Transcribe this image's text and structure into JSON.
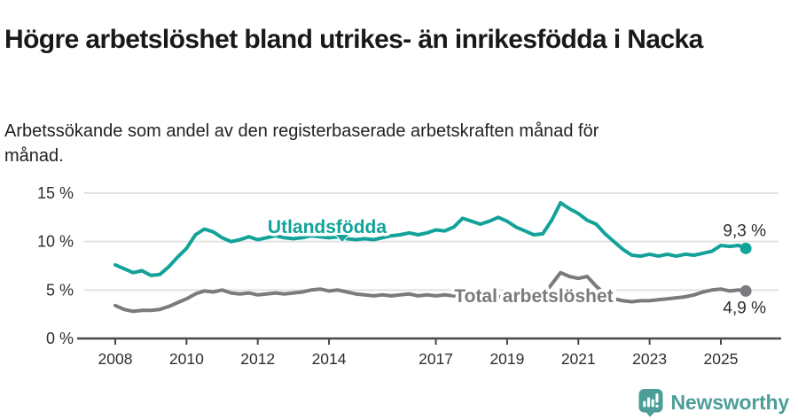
{
  "header": {
    "title": "Högre arbetslöshet bland utrikes- än inrikesfödda i Nacka",
    "subtitle": "Arbetssökande som andel av den registerbaserade arbetskraften månad för månad."
  },
  "footer": {
    "brand": "Newsworthy",
    "logo_icon": "speech-bubble-bar-chart-icon"
  },
  "colors": {
    "series_utlandsfodda": "#13A29A",
    "series_total": "#7A7A7F",
    "label_total": "#6F6F74",
    "grid": "#E2E2E2",
    "axis": "#48484C",
    "tick_text": "#2E2E2E",
    "value_text": "#2B2B2B",
    "brand_teal": "#4D9E99"
  },
  "chart_data": {
    "type": "line",
    "x_unit": "year_decimal",
    "grid": "horizontal",
    "legend_position": "inline-labels",
    "x_axis": {
      "ticks": [
        2008,
        2010,
        2012,
        2014,
        2017,
        2019,
        2021,
        2023,
        2025
      ]
    },
    "y_axis": {
      "range": [
        0,
        15
      ],
      "unit": "%",
      "ticks": [
        {
          "value": 0,
          "label": "0 %"
        },
        {
          "value": 5,
          "label": "5 %"
        },
        {
          "value": 10,
          "label": "10 %"
        },
        {
          "value": 15,
          "label": "15 %"
        }
      ]
    },
    "x": [
      2008,
      2008.25,
      2008.5,
      2008.75,
      2009,
      2009.25,
      2009.5,
      2009.75,
      2010,
      2010.25,
      2010.5,
      2010.75,
      2011,
      2011.25,
      2011.5,
      2011.75,
      2012,
      2012.25,
      2012.5,
      2012.75,
      2013,
      2013.25,
      2013.5,
      2013.75,
      2014,
      2014.25,
      2014.5,
      2014.75,
      2015,
      2015.25,
      2015.5,
      2015.75,
      2016,
      2016.25,
      2016.5,
      2016.75,
      2017,
      2017.25,
      2017.5,
      2017.75,
      2018,
      2018.25,
      2018.5,
      2018.75,
      2019,
      2019.25,
      2019.5,
      2019.75,
      2020,
      2020.25,
      2020.5,
      2020.75,
      2021,
      2021.25,
      2021.5,
      2021.75,
      2022,
      2022.25,
      2022.5,
      2022.75,
      2023,
      2023.25,
      2023.5,
      2023.75,
      2024,
      2024.25,
      2024.5,
      2024.75,
      2025,
      2025.25,
      2025.5,
      2025.7
    ],
    "series": [
      {
        "name": "Utlandsfödda",
        "color": "#13A29A",
        "end_label": "9,3 %",
        "end_label_pos": "above",
        "inline_label": {
          "x": 369,
          "y": 263,
          "pointer": true
        },
        "values": [
          7.6,
          7.2,
          6.8,
          7.0,
          6.5,
          6.6,
          7.4,
          8.4,
          9.3,
          10.7,
          11.3,
          11.0,
          10.4,
          10.0,
          10.2,
          10.5,
          10.2,
          10.4,
          10.6,
          10.4,
          10.3,
          10.4,
          10.6,
          10.5,
          10.4,
          10.5,
          10.3,
          10.2,
          10.3,
          10.2,
          10.4,
          10.6,
          10.7,
          10.9,
          10.7,
          10.9,
          11.2,
          11.1,
          11.5,
          12.4,
          12.1,
          11.8,
          12.1,
          12.5,
          12.1,
          11.5,
          11.1,
          10.7,
          10.8,
          12.2,
          14.0,
          13.4,
          12.9,
          12.2,
          11.8,
          10.8,
          10.0,
          9.2,
          8.6,
          8.5,
          8.7,
          8.5,
          8.7,
          8.5,
          8.7,
          8.6,
          8.8,
          9.0,
          9.6,
          9.5,
          9.6,
          9.3
        ]
      },
      {
        "name": "Total arbetslöshet",
        "color": "#7A7A7F",
        "end_label": "4,9 %",
        "end_label_pos": "below",
        "inline_label": {
          "x": 602,
          "y": 341,
          "pointer": false
        },
        "values": [
          3.4,
          3.0,
          2.8,
          2.9,
          2.9,
          3.0,
          3.3,
          3.7,
          4.1,
          4.6,
          4.9,
          4.8,
          5.0,
          4.7,
          4.6,
          4.7,
          4.5,
          4.6,
          4.7,
          4.6,
          4.7,
          4.8,
          5.0,
          5.1,
          4.9,
          5.0,
          4.8,
          4.6,
          4.5,
          4.4,
          4.5,
          4.4,
          4.5,
          4.6,
          4.4,
          4.5,
          4.4,
          4.5,
          4.4,
          4.5,
          4.4,
          4.3,
          4.4,
          4.3,
          4.4,
          4.3,
          4.4,
          4.3,
          4.4,
          5.6,
          6.8,
          6.4,
          6.2,
          6.4,
          5.4,
          4.6,
          4.1,
          3.9,
          3.8,
          3.9,
          3.9,
          4.0,
          4.1,
          4.2,
          4.3,
          4.5,
          4.8,
          5.0,
          5.1,
          4.9,
          5.0,
          4.9
        ]
      }
    ]
  }
}
